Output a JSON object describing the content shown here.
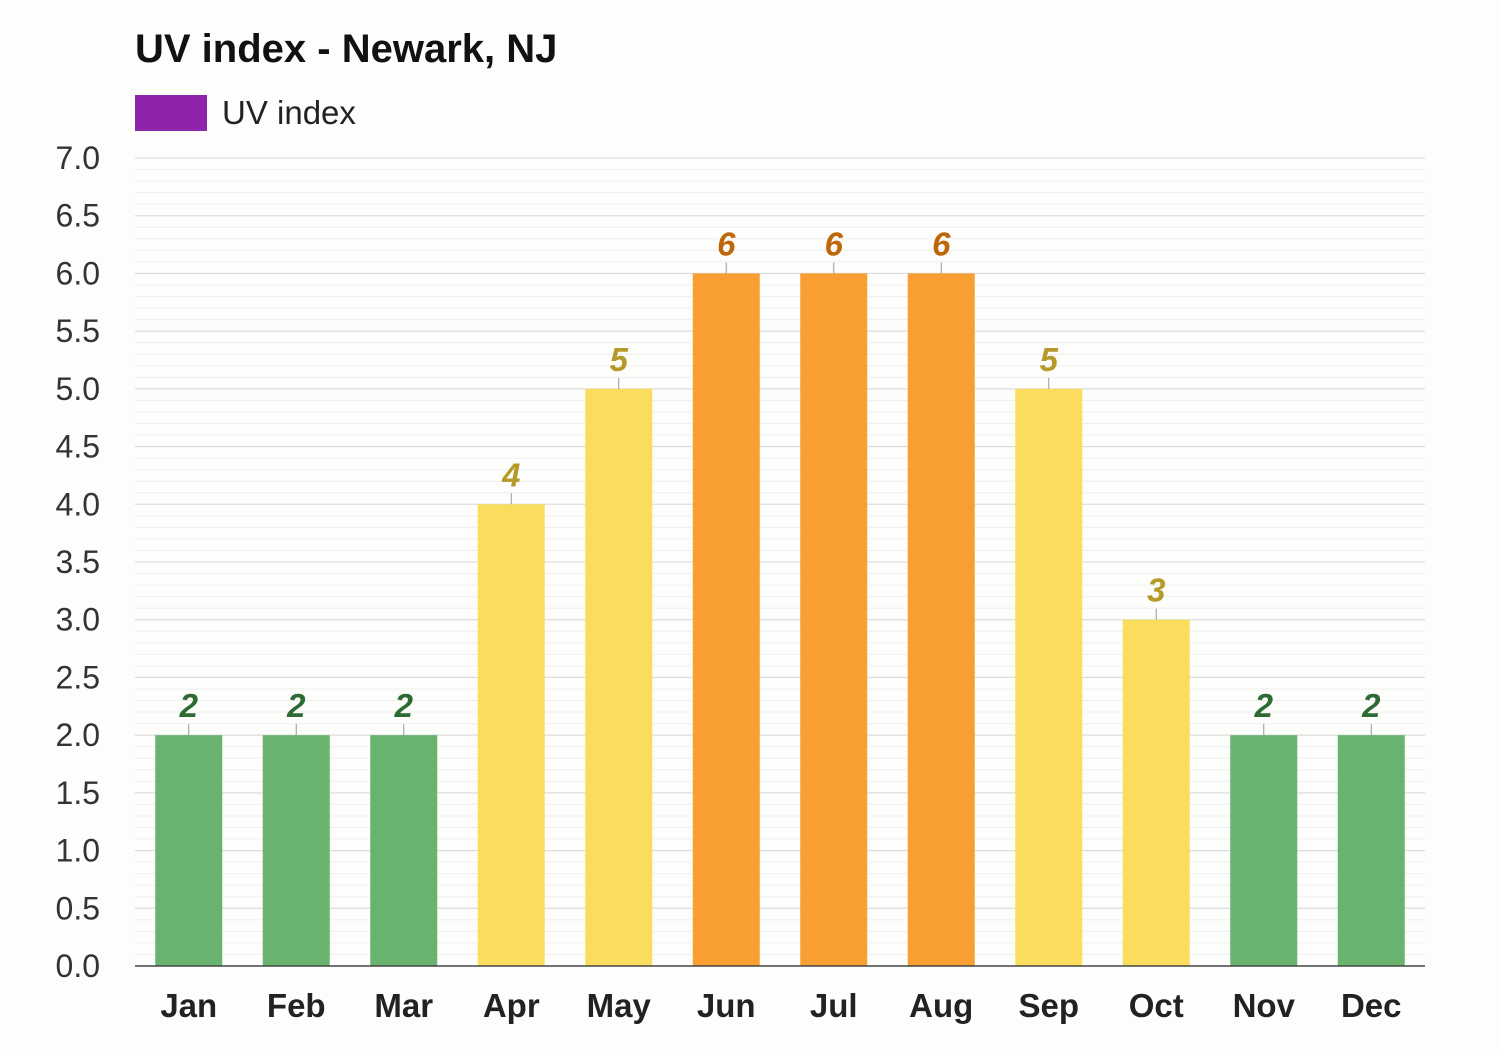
{
  "chart_data": {
    "type": "bar",
    "title": "UV index - Newark, NJ",
    "legend": [
      {
        "name": "UV index",
        "color": "#8e24aa"
      }
    ],
    "legend_position": "top-left",
    "categories": [
      "Jan",
      "Feb",
      "Mar",
      "Apr",
      "May",
      "Jun",
      "Jul",
      "Aug",
      "Sep",
      "Oct",
      "Nov",
      "Dec"
    ],
    "series": [
      {
        "name": "UV index",
        "values": [
          2,
          2,
          2,
          4,
          5,
          6,
          6,
          6,
          5,
          3,
          2,
          2
        ]
      }
    ],
    "data_labels": [
      "2",
      "2",
      "2",
      "4",
      "5",
      "6",
      "6",
      "6",
      "5",
      "3",
      "2",
      "2"
    ],
    "ylim": [
      0,
      7
    ],
    "yticks": [
      "0.0",
      "0.5",
      "1.0",
      "1.5",
      "2.0",
      "2.5",
      "3.0",
      "3.5",
      "4.0",
      "4.5",
      "5.0",
      "5.5",
      "6.0",
      "6.5",
      "7.0"
    ],
    "grid": true,
    "color_scale": {
      "low": {
        "max": 2,
        "bar": "#6ab36f",
        "label": "#2e6b34"
      },
      "moderate": {
        "max": 5,
        "bar": "#fbdd5d",
        "label": "#b59a2a"
      },
      "high": {
        "max": 7,
        "bar": "#f99e31",
        "label": "#c0660a"
      }
    }
  }
}
